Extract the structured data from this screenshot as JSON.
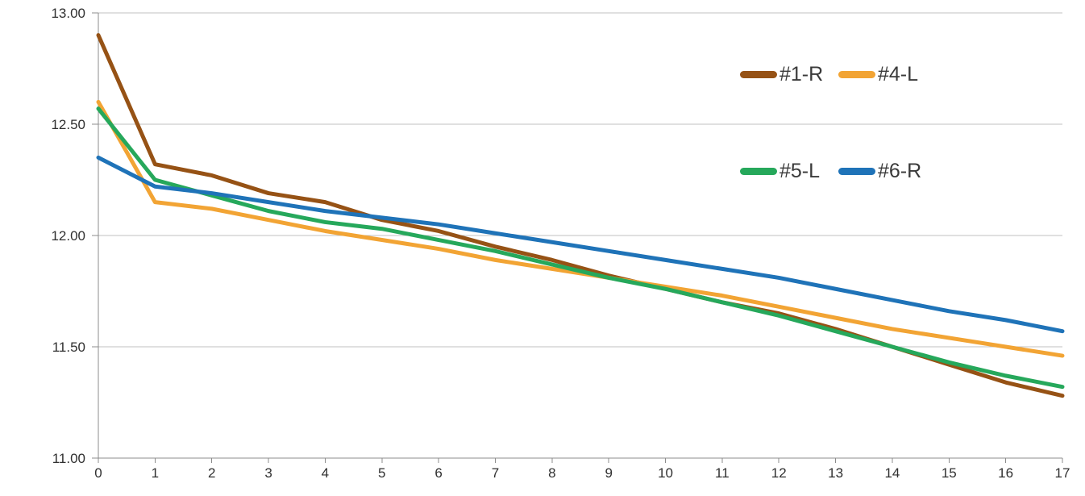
{
  "chart_data": {
    "type": "line",
    "x": [
      0,
      1,
      2,
      3,
      4,
      5,
      6,
      7,
      8,
      9,
      10,
      11,
      12,
      13,
      14,
      15,
      16,
      17
    ],
    "series": [
      {
        "name": "#1-R",
        "color": "#965215",
        "values": [
          12.9,
          12.32,
          12.27,
          12.19,
          12.15,
          12.07,
          12.02,
          11.95,
          11.89,
          11.82,
          11.76,
          11.7,
          11.65,
          11.58,
          11.5,
          11.42,
          11.34,
          11.28
        ]
      },
      {
        "name": "#4-L",
        "color": "#F2A434",
        "values": [
          12.6,
          12.15,
          12.12,
          12.07,
          12.02,
          11.98,
          11.94,
          11.89,
          11.85,
          11.81,
          11.77,
          11.73,
          11.68,
          11.63,
          11.58,
          11.54,
          11.5,
          11.46
        ]
      },
      {
        "name": "#5-L",
        "color": "#26A85B",
        "values": [
          12.57,
          12.25,
          12.18,
          12.11,
          12.06,
          12.03,
          11.98,
          11.93,
          11.87,
          11.81,
          11.76,
          11.7,
          11.64,
          11.57,
          11.5,
          11.43,
          11.37,
          11.32
        ]
      },
      {
        "name": "#6-R",
        "color": "#1F73B8",
        "values": [
          12.35,
          12.22,
          12.19,
          12.15,
          12.11,
          12.08,
          12.05,
          12.01,
          11.97,
          11.93,
          11.89,
          11.85,
          11.81,
          11.76,
          11.71,
          11.66,
          11.62,
          11.57
        ]
      }
    ],
    "title": "",
    "xlabel": "",
    "ylabel": "",
    "xlim": [
      0,
      17
    ],
    "ylim": [
      11.0,
      13.0
    ],
    "ytick_labels": [
      "11.00",
      "11.50",
      "12.00",
      "12.50",
      "13.00"
    ],
    "xtick_labels": [
      "0",
      "1",
      "2",
      "3",
      "4",
      "5",
      "6",
      "7",
      "8",
      "9",
      "10",
      "11",
      "12",
      "13",
      "14",
      "15",
      "16",
      "17"
    ],
    "grid": "horizontal",
    "legend_position": "inside-top-right",
    "legend_rows": [
      [
        "#1-R",
        "#4-L"
      ],
      [
        "#5-L",
        "#6-R"
      ]
    ]
  },
  "style_colors": {
    "background": "#FFFFFF",
    "gridline": "#C0C0C0",
    "axis": "#8C8C8C",
    "tick_label": "#303030",
    "legend_text": "#3A3A3A"
  }
}
